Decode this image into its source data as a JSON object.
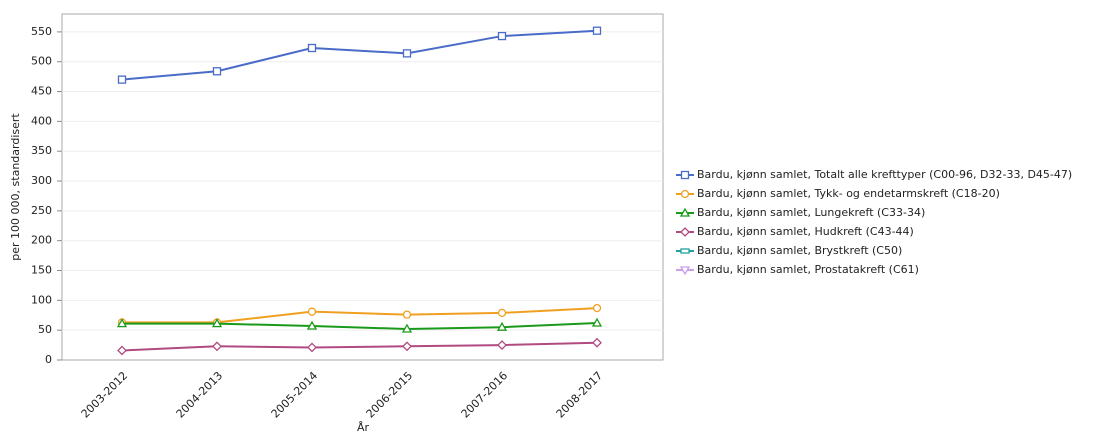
{
  "chart_data": {
    "type": "line",
    "x_label": "År",
    "y_label": "per 100 000, standardisert",
    "categories": [
      "2003-2012",
      "2004-2013",
      "2005-2014",
      "2006-2015",
      "2007-2016",
      "2008-2017"
    ],
    "series": [
      {
        "name": "Bardu, kjønn samlet, Totalt alle krefttyper (C00-96, D32-33, D45-47)",
        "color": "#4a6cc8",
        "marker": "square",
        "values": [
          470,
          484,
          523,
          514,
          543,
          552
        ]
      },
      {
        "name": "Bardu, kjønn samlet,  Tykk- og endetarmskreft (C18-20)",
        "color": "#f0a020",
        "marker": "circle",
        "values": [
          63,
          63,
          81,
          76,
          79,
          87
        ]
      },
      {
        "name": "Bardu, kjønn samlet, Lungekreft (C33-34)",
        "color": "#1a9a1a",
        "marker": "triangle",
        "values": [
          61,
          61,
          57,
          52,
          55,
          62
        ]
      },
      {
        "name": "Bardu, kjønn samlet, Hudkreft (C43-44)",
        "color": "#b04a80",
        "marker": "diamond",
        "values": [
          16,
          23,
          21,
          23,
          25,
          29
        ]
      },
      {
        "name": "Bardu, kjønn samlet, Brystkreft (C50)",
        "color": "#20a0a0",
        "marker": "dash",
        "values": [
          null,
          null,
          null,
          null,
          null,
          null
        ]
      },
      {
        "name": "Bardu, kjønn samlet, Prostatakreft (C61)",
        "color": "#c8a0e8",
        "marker": "triangle-down",
        "values": [
          null,
          null,
          null,
          null,
          null,
          null
        ]
      }
    ],
    "ylim": [
      0,
      580
    ],
    "yticks": [
      0,
      50,
      100,
      150,
      200,
      250,
      300,
      350,
      400,
      450,
      500,
      550
    ],
    "grid": true,
    "legend": "right"
  }
}
